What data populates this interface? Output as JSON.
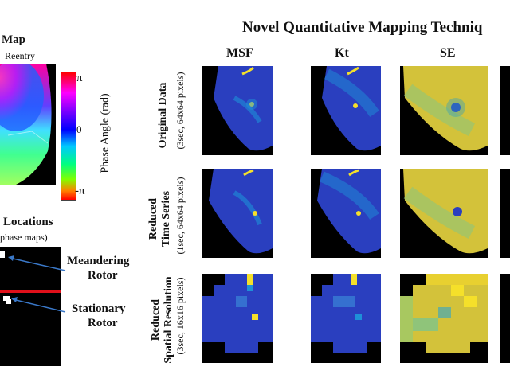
{
  "left": {
    "title": "Map",
    "subtitle": "Reentry",
    "colorbar": {
      "top_label": "π",
      "mid_label": "0",
      "bottom_label": "-π",
      "axis_label": "Phase Angle (rad)"
    },
    "locations_title": "Locations",
    "locations_sub": "phase maps)",
    "meandering": "Meandering",
    "meandering_2": "Rotor",
    "stationary": "Stationary",
    "stationary_2": "Rotor"
  },
  "header": {
    "title": "Novel Quantitative Mapping Techniq",
    "col_msf": "MSF",
    "col_kt": "Kt",
    "col_se": "SE"
  },
  "rows": [
    {
      "title": "Original Data",
      "sub": "(3sec, 64x64 pixels)"
    },
    {
      "title_1": "Reduced",
      "title_2": "Time Series",
      "sub": "(1sec, 64x64 pixels)"
    },
    {
      "title_1": "Reduced",
      "title_2": "Spatial Resolution",
      "sub": "(3sec, 16x16 pixels)"
    }
  ],
  "colors": {
    "blue_low": "#2a3fbf",
    "cyan_mid": "#1e90d8",
    "yellow_hi": "#f5e02a",
    "se_base": "#d3c23a",
    "arrow": "#3a78c8",
    "red_line": "#e0101a"
  }
}
